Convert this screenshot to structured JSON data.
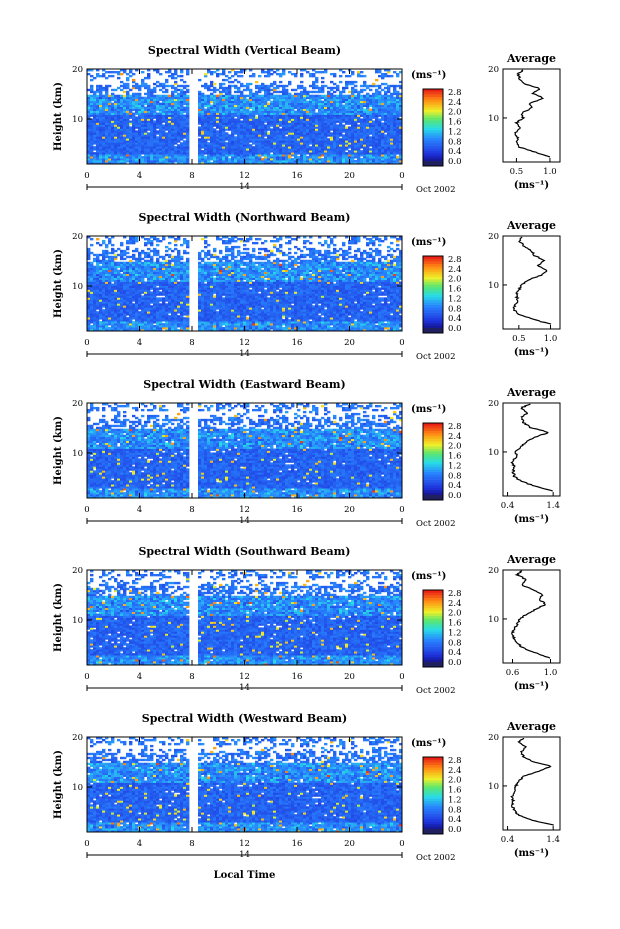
{
  "chart_data": [
    {
      "type": "heatmap",
      "title": "Spectral Width (Vertical Beam)",
      "ylabel": "Height (km)",
      "date_label": "Oct 2002",
      "day_label": "14",
      "x_ticks": [
        "0",
        "4",
        "8",
        "12",
        "16",
        "20",
        "0"
      ],
      "y_ticks": [
        "20",
        "10"
      ],
      "xlim": [
        0,
        24
      ],
      "ylim": [
        1,
        20
      ],
      "gap": [
        7.7,
        8.5
      ],
      "colorbar": {
        "unit": "(ms⁻¹)",
        "ticks": [
          "2.8",
          "2.4",
          "2.0",
          "1.6",
          "1.2",
          "0.8",
          "0.4",
          "0.0"
        ],
        "range": [
          0,
          2.8
        ]
      },
      "average": {
        "title": "Average",
        "xlabel": "(ms⁻¹)",
        "x_ticks": [
          "0.5",
          "1.0"
        ],
        "y_ticks": [
          "20",
          "10"
        ],
        "xlim": [
          0.3,
          1.15
        ],
        "profile": [
          [
            2,
            1.0
          ],
          [
            3,
            0.78
          ],
          [
            4,
            0.55
          ],
          [
            5,
            0.5
          ],
          [
            6,
            0.52
          ],
          [
            7,
            0.48
          ],
          [
            8,
            0.55
          ],
          [
            9,
            0.5
          ],
          [
            10,
            0.6
          ],
          [
            11,
            0.58
          ],
          [
            12,
            0.72
          ],
          [
            13,
            0.7
          ],
          [
            14,
            0.9
          ],
          [
            15,
            0.75
          ],
          [
            16,
            0.85
          ],
          [
            17,
            0.62
          ],
          [
            18,
            0.55
          ],
          [
            19,
            0.52
          ],
          [
            19.8,
            0.6
          ]
        ]
      }
    },
    {
      "type": "heatmap",
      "title": "Spectral Width (Northward Beam)",
      "ylabel": "Height (km)",
      "date_label": "Oct 2002",
      "day_label": "14",
      "x_ticks": [
        "0",
        "4",
        "8",
        "12",
        "16",
        "20",
        "0"
      ],
      "y_ticks": [
        "20",
        "10"
      ],
      "xlim": [
        0,
        24
      ],
      "ylim": [
        1,
        20
      ],
      "gap": [
        7.7,
        8.5
      ],
      "colorbar": {
        "unit": "(ms⁻¹)",
        "ticks": [
          "2.8",
          "2.4",
          "2.0",
          "1.6",
          "1.2",
          "0.8",
          "0.4",
          "0.0"
        ],
        "range": [
          0,
          2.8
        ]
      },
      "average": {
        "title": "Average",
        "xlabel": "(ms⁻¹)",
        "x_ticks": [
          "0.5",
          "1.0"
        ],
        "y_ticks": [
          "20",
          "10"
        ],
        "xlim": [
          0.25,
          1.15
        ],
        "profile": [
          [
            2,
            1.0
          ],
          [
            3,
            0.72
          ],
          [
            4,
            0.5
          ],
          [
            5,
            0.42
          ],
          [
            6,
            0.45
          ],
          [
            7,
            0.48
          ],
          [
            8,
            0.46
          ],
          [
            9,
            0.5
          ],
          [
            10,
            0.55
          ],
          [
            11,
            0.65
          ],
          [
            12,
            0.85
          ],
          [
            13,
            0.95
          ],
          [
            14,
            0.8
          ],
          [
            15,
            0.9
          ],
          [
            16,
            0.75
          ],
          [
            17,
            0.7
          ],
          [
            18,
            0.58
          ],
          [
            19,
            0.5
          ],
          [
            19.8,
            0.55
          ]
        ]
      }
    },
    {
      "type": "heatmap",
      "title": "Spectral Width (Eastward Beam)",
      "ylabel": "Height (km)",
      "date_label": "Oct 2002",
      "day_label": "14",
      "x_ticks": [
        "0",
        "4",
        "8",
        "12",
        "16",
        "20",
        "0"
      ],
      "y_ticks": [
        "20",
        "10"
      ],
      "xlim": [
        0,
        24
      ],
      "ylim": [
        1,
        20
      ],
      "gap": [
        7.7,
        8.5
      ],
      "colorbar": {
        "unit": "(ms⁻¹)",
        "ticks": [
          "2.8",
          "2.4",
          "2.0",
          "1.6",
          "1.2",
          "0.8",
          "0.4",
          "0.0"
        ],
        "range": [
          0,
          2.8
        ]
      },
      "average": {
        "title": "Average",
        "xlabel": "(ms⁻¹)",
        "x_ticks": [
          "0.4",
          "1.4"
        ],
        "y_ticks": [
          "20",
          "10"
        ],
        "xlim": [
          0.3,
          1.55
        ],
        "profile": [
          [
            2,
            1.4
          ],
          [
            3,
            1.0
          ],
          [
            4,
            0.7
          ],
          [
            5,
            0.55
          ],
          [
            6,
            0.52
          ],
          [
            7,
            0.55
          ],
          [
            8,
            0.5
          ],
          [
            9,
            0.6
          ],
          [
            10,
            0.58
          ],
          [
            11,
            0.7
          ],
          [
            12,
            0.8
          ],
          [
            13,
            1.0
          ],
          [
            14,
            1.3
          ],
          [
            15,
            0.9
          ],
          [
            16,
            0.75
          ],
          [
            17,
            0.7
          ],
          [
            18,
            0.85
          ],
          [
            19,
            0.7
          ],
          [
            19.8,
            0.9
          ]
        ]
      }
    },
    {
      "type": "heatmap",
      "title": "Spectral Width (Southward Beam)",
      "ylabel": "Height (km)",
      "date_label": "Oct 2002",
      "day_label": "14",
      "x_ticks": [
        "0",
        "4",
        "8",
        "12",
        "16",
        "20",
        "0"
      ],
      "y_ticks": [
        "20",
        "10"
      ],
      "xlim": [
        0,
        24
      ],
      "ylim": [
        1,
        20
      ],
      "gap": [
        7.7,
        8.5
      ],
      "colorbar": {
        "unit": "(ms⁻¹)",
        "ticks": [
          "2.8",
          "2.4",
          "2.0",
          "1.6",
          "1.2",
          "0.8",
          "0.4",
          "0.0"
        ],
        "range": [
          0,
          2.8
        ]
      },
      "average": {
        "title": "Average",
        "xlabel": "(ms⁻¹)",
        "x_ticks": [
          "0.6",
          "1.0"
        ],
        "y_ticks": [
          "20",
          "10"
        ],
        "xlim": [
          0.5,
          1.1
        ],
        "profile": [
          [
            2,
            1.0
          ],
          [
            3,
            0.85
          ],
          [
            4,
            0.72
          ],
          [
            5,
            0.65
          ],
          [
            6,
            0.62
          ],
          [
            7,
            0.6
          ],
          [
            8,
            0.62
          ],
          [
            9,
            0.65
          ],
          [
            10,
            0.68
          ],
          [
            11,
            0.75
          ],
          [
            12,
            0.85
          ],
          [
            13,
            0.95
          ],
          [
            14,
            0.88
          ],
          [
            15,
            0.92
          ],
          [
            16,
            0.8
          ],
          [
            17,
            0.7
          ],
          [
            18,
            0.75
          ],
          [
            19,
            0.65
          ],
          [
            19.8,
            0.7
          ]
        ]
      }
    },
    {
      "type": "heatmap",
      "title": "Spectral Width (Westward Beam)",
      "ylabel": "Height (km)",
      "date_label": "Oct 2002",
      "day_label": "14",
      "x_ticks": [
        "0",
        "4",
        "8",
        "12",
        "16",
        "20",
        "0"
      ],
      "y_ticks": [
        "20",
        "10"
      ],
      "xlim": [
        0,
        24
      ],
      "ylim": [
        1,
        20
      ],
      "gap": [
        7.7,
        8.5
      ],
      "colorbar": {
        "unit": "(ms⁻¹)",
        "ticks": [
          "2.8",
          "2.4",
          "2.0",
          "1.6",
          "1.2",
          "0.8",
          "0.4",
          "0.0"
        ],
        "range": [
          0,
          2.8
        ]
      },
      "average": {
        "title": "Average",
        "xlabel": "(ms⁻¹)",
        "x_ticks": [
          "0.4",
          "1.4"
        ],
        "y_ticks": [
          "20",
          "10"
        ],
        "xlim": [
          0.3,
          1.55
        ],
        "profile": [
          [
            2,
            1.4
          ],
          [
            3,
            0.95
          ],
          [
            4,
            0.65
          ],
          [
            5,
            0.55
          ],
          [
            6,
            0.5
          ],
          [
            7,
            0.52
          ],
          [
            8,
            0.5
          ],
          [
            9,
            0.55
          ],
          [
            10,
            0.58
          ],
          [
            11,
            0.65
          ],
          [
            12,
            0.75
          ],
          [
            13,
            1.1
          ],
          [
            14,
            1.35
          ],
          [
            15,
            0.95
          ],
          [
            16,
            0.75
          ],
          [
            17,
            0.7
          ],
          [
            18,
            0.8
          ],
          [
            19,
            0.65
          ],
          [
            19.8,
            0.75
          ]
        ]
      }
    }
  ],
  "xlabel": "Local Time"
}
